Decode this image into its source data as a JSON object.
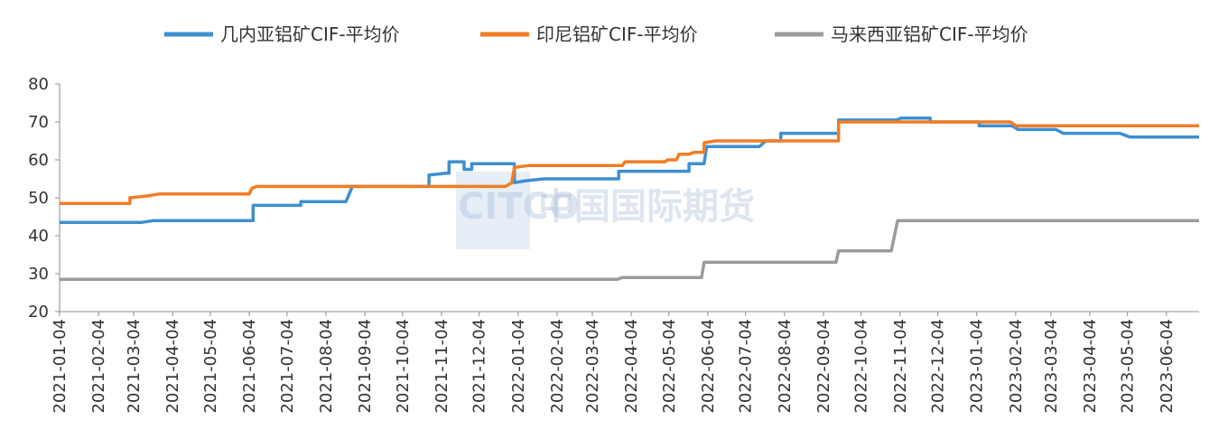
{
  "chart_data": {
    "type": "line",
    "title": "",
    "xlabel": "",
    "ylabel": "",
    "ylim": [
      20,
      80
    ],
    "yticks": [
      20,
      30,
      40,
      50,
      60,
      70,
      80
    ],
    "grid": false,
    "legend_position": "top",
    "x_start": "2021-01-04",
    "x_end": "2023-06-30",
    "xticks": [
      "2021-01-04",
      "2021-02-04",
      "2021-03-04",
      "2021-04-04",
      "2021-05-04",
      "2021-06-04",
      "2021-07-04",
      "2021-08-04",
      "2021-09-04",
      "2021-10-04",
      "2021-11-04",
      "2021-12-04",
      "2022-01-04",
      "2022-02-04",
      "2022-03-04",
      "2022-04-04",
      "2022-05-04",
      "2022-06-04",
      "2022-07-04",
      "2022-08-04",
      "2022-09-04",
      "2022-10-04",
      "2022-11-04",
      "2022-12-04",
      "2023-01-04",
      "2023-02-04",
      "2023-03-04",
      "2023-04-04",
      "2023-05-04",
      "2023-06-04"
    ],
    "series": [
      {
        "name": "几内亚铝矿CIF-平均价",
        "color": "#3d8fd1",
        "points": [
          [
            "2021-01-04",
            43.5
          ],
          [
            "2021-03-10",
            43.5
          ],
          [
            "2021-03-20",
            44
          ],
          [
            "2021-06-07",
            44
          ],
          [
            "2021-06-07",
            48
          ],
          [
            "2021-07-15",
            48
          ],
          [
            "2021-07-15",
            49
          ],
          [
            "2021-08-20",
            49
          ],
          [
            "2021-08-25",
            53
          ],
          [
            "2021-10-25",
            53
          ],
          [
            "2021-10-25",
            56
          ],
          [
            "2021-11-08",
            56.5
          ],
          [
            "2021-11-10",
            56.5
          ],
          [
            "2021-11-10",
            59.5
          ],
          [
            "2021-11-22",
            59.5
          ],
          [
            "2021-11-22",
            57.5
          ],
          [
            "2021-11-28",
            57.5
          ],
          [
            "2021-11-28",
            59
          ],
          [
            "2022-01-01",
            59
          ],
          [
            "2022-01-01",
            54
          ],
          [
            "2022-01-10",
            54.5
          ],
          [
            "2022-01-25",
            55
          ],
          [
            "2022-03-25",
            55
          ],
          [
            "2022-03-25",
            57
          ],
          [
            "2022-05-20",
            57
          ],
          [
            "2022-05-20",
            59
          ],
          [
            "2022-06-01",
            59
          ],
          [
            "2022-06-03",
            63.5
          ],
          [
            "2022-07-15",
            63.5
          ],
          [
            "2022-07-20",
            65
          ],
          [
            "2022-08-01",
            65
          ],
          [
            "2022-08-01",
            67
          ],
          [
            "2022-09-16",
            67
          ],
          [
            "2022-09-16",
            70.5
          ],
          [
            "2022-11-01",
            70.5
          ],
          [
            "2022-11-05",
            71
          ],
          [
            "2022-11-28",
            71
          ],
          [
            "2022-11-28",
            70
          ],
          [
            "2023-01-06",
            70
          ],
          [
            "2023-01-06",
            69
          ],
          [
            "2023-02-01",
            69
          ],
          [
            "2023-02-06",
            68
          ],
          [
            "2023-03-08",
            68
          ],
          [
            "2023-03-14",
            67
          ],
          [
            "2023-04-28",
            67
          ],
          [
            "2023-05-06",
            66
          ],
          [
            "2023-06-30",
            66
          ]
        ]
      },
      {
        "name": "印尼铝矿CIF-平均价",
        "color": "#f07d25",
        "points": [
          [
            "2021-01-04",
            48.5
          ],
          [
            "2021-03-01",
            48.5
          ],
          [
            "2021-03-01",
            50
          ],
          [
            "2021-03-15",
            50.5
          ],
          [
            "2021-03-24",
            51
          ],
          [
            "2021-06-04",
            51
          ],
          [
            "2021-06-06",
            52.5
          ],
          [
            "2021-06-10",
            53
          ],
          [
            "2021-12-25",
            53
          ],
          [
            "2021-12-30",
            54
          ],
          [
            "2022-01-01",
            58
          ],
          [
            "2022-01-12",
            58.5
          ],
          [
            "2022-03-28",
            58.5
          ],
          [
            "2022-03-30",
            59.5
          ],
          [
            "2022-05-01",
            59.5
          ],
          [
            "2022-05-03",
            60
          ],
          [
            "2022-05-10",
            60
          ],
          [
            "2022-05-12",
            61.5
          ],
          [
            "2022-05-20",
            61.5
          ],
          [
            "2022-05-24",
            62
          ],
          [
            "2022-06-01",
            62
          ],
          [
            "2022-06-01",
            64.5
          ],
          [
            "2022-06-10",
            65
          ],
          [
            "2022-09-16",
            65
          ],
          [
            "2022-09-16",
            70
          ],
          [
            "2023-01-25",
            70
          ],
          [
            "2023-01-31",
            70
          ],
          [
            "2023-02-04",
            69
          ],
          [
            "2023-06-30",
            69
          ]
        ]
      },
      {
        "name": "马来西亚铝矿CIF-平均价",
        "color": "#9b9b9b",
        "points": [
          [
            "2021-01-04",
            28.5
          ],
          [
            "2022-03-24",
            28.5
          ],
          [
            "2022-03-28",
            29
          ],
          [
            "2022-05-30",
            29
          ],
          [
            "2022-06-01",
            33
          ],
          [
            "2022-09-14",
            33
          ],
          [
            "2022-09-16",
            36
          ],
          [
            "2022-10-28",
            36
          ],
          [
            "2022-11-02",
            44
          ],
          [
            "2023-06-30",
            44
          ]
        ]
      }
    ]
  },
  "watermark": {
    "logo_text": "CITCO",
    "cn_text": "中国国际期货"
  }
}
